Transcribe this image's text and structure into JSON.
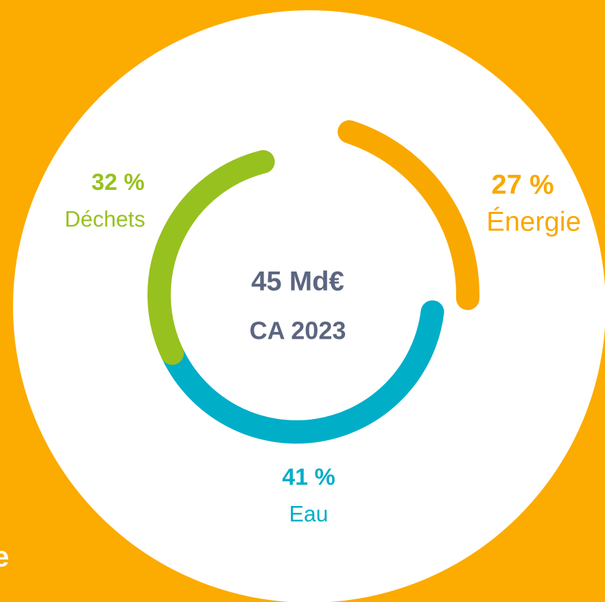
{
  "chart_data": {
    "type": "donut",
    "center_value": "45 Md€",
    "center_label": "CA 2023",
    "categories": [
      "Énergie",
      "Eau",
      "Déchets"
    ],
    "values": [
      27,
      41,
      32
    ],
    "value_labels": [
      "27 %",
      "41 %",
      "32 %"
    ],
    "colors": [
      "#f9a800",
      "#00aec8",
      "#97c11f"
    ]
  },
  "footer_fragment": "e"
}
